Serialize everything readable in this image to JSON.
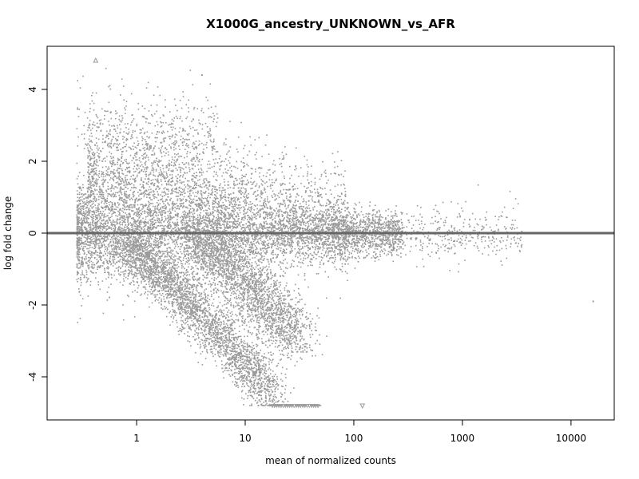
{
  "chart_data": {
    "type": "scatter",
    "title": "X1000G_ancestry_UNKNOWN_vs_AFR",
    "xlabel": "mean of normalized counts",
    "ylabel": "log fold change",
    "x_scale": "log10",
    "xlim": [
      0.15,
      25000
    ],
    "ylim": [
      -5.2,
      5.2
    ],
    "x_ticks": [
      1,
      10,
      100,
      1000,
      10000
    ],
    "x_tick_labels": [
      "1",
      "10",
      "100",
      "1000",
      "10000"
    ],
    "y_ticks": [
      -4,
      -2,
      0,
      2,
      4
    ],
    "y_tick_labels": [
      "-4",
      "-2",
      "0",
      "2",
      "4"
    ],
    "grid": false,
    "legend": "none",
    "reference_line": {
      "y": 0,
      "color": "#666666"
    },
    "colors": {
      "points": "#9a9a9a",
      "reference_line": "#666666",
      "frame": "#000000"
    },
    "density": {
      "description": "Roughly 15000 genes. Dense band centered near zero from about 0.3 to 300 counts, a fanning upper cloud reaching +3 at low counts, a diagonal descending cloud from ~(1,-1) to ~(15,-4.8), a second descending band from ~(4,0) to ~(25,-3), and clipped points at -4.8 between 15 and 50 counts."
    },
    "highlighted_points": [
      {
        "x": 0.42,
        "y": 4.8,
        "shape": "triangle-up"
      },
      {
        "x": 16000,
        "y": -1.9,
        "shape": "point"
      },
      {
        "x": 120,
        "y": -4.8,
        "shape": "triangle-down"
      },
      {
        "x": 4.0,
        "y": 4.4,
        "shape": "point"
      }
    ]
  }
}
